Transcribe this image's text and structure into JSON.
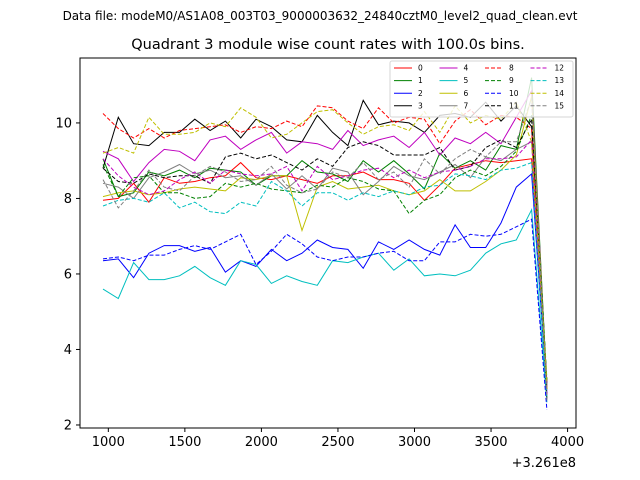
{
  "suptitle": "Data file: modeM0/AS1A08_003T03_9000003632_24840cztM0_level2_quad_clean.evt",
  "chart_data": {
    "type": "line",
    "title": "Quadrant 3 module wise count rates with 100.0s bins.",
    "xlabel": "",
    "ylabel": "",
    "x_offset_label": "+3.261e8",
    "xlim": [
      815,
      4055
    ],
    "ylim": [
      1.92,
      11.72
    ],
    "xticks": [
      1000,
      1500,
      2000,
      2500,
      3000,
      3500,
      4000
    ],
    "yticks": [
      2,
      4,
      6,
      8,
      10
    ],
    "grid": false,
    "legend_position": "top-right",
    "x": [
      965,
      1065,
      1165,
      1265,
      1365,
      1465,
      1565,
      1665,
      1765,
      1865,
      1965,
      2065,
      2165,
      2265,
      2365,
      2465,
      2565,
      2665,
      2765,
      2865,
      2965,
      3065,
      3165,
      3265,
      3365,
      3465,
      3565,
      3665,
      3765,
      3865
    ],
    "series": [
      {
        "name": "0",
        "color": "#ff0000",
        "dash": "solid",
        "values": [
          7.95,
          8.0,
          8.4,
          7.9,
          8.55,
          8.4,
          8.45,
          8.55,
          8.6,
          8.95,
          8.55,
          8.5,
          8.6,
          8.5,
          8.4,
          8.6,
          8.6,
          8.7,
          8.5,
          8.5,
          8.4,
          7.95,
          8.35,
          8.8,
          8.9,
          9.0,
          8.95,
          9.0,
          9.05,
          3.15
        ]
      },
      {
        "name": "1",
        "color": "#008000",
        "dash": "solid",
        "values": [
          9.05,
          8.05,
          8.15,
          8.7,
          8.6,
          8.75,
          8.55,
          8.8,
          8.75,
          8.7,
          8.35,
          8.6,
          8.6,
          9.0,
          8.7,
          8.65,
          8.45,
          9.0,
          8.7,
          9.0,
          8.65,
          8.25,
          9.2,
          8.8,
          9.0,
          8.75,
          9.4,
          9.3,
          11.2,
          2.95
        ]
      },
      {
        "name": "2",
        "color": "#0000ff",
        "dash": "solid",
        "values": [
          6.35,
          6.4,
          5.9,
          6.55,
          6.75,
          6.75,
          6.6,
          6.7,
          6.05,
          6.35,
          6.2,
          6.65,
          6.35,
          6.55,
          6.9,
          6.7,
          6.65,
          6.15,
          6.85,
          6.65,
          6.9,
          6.65,
          6.5,
          7.3,
          6.7,
          6.7,
          7.35,
          8.3,
          8.65,
          2.85
        ]
      },
      {
        "name": "3",
        "color": "#000000",
        "dash": "solid",
        "values": [
          8.8,
          10.15,
          9.45,
          9.4,
          9.75,
          9.75,
          10.1,
          9.8,
          10.05,
          9.6,
          10.1,
          9.9,
          9.55,
          9.5,
          10.2,
          9.75,
          9.4,
          10.6,
          9.95,
          10.05,
          10.0,
          9.75,
          10.2,
          10.25,
          10.15,
          10.55,
          10.05,
          10.45,
          9.9,
          3.1
        ]
      },
      {
        "name": "4",
        "color": "#bf00bf",
        "dash": "solid",
        "values": [
          9.25,
          9.05,
          8.45,
          8.95,
          9.3,
          9.25,
          9.0,
          9.55,
          9.65,
          9.3,
          9.55,
          9.75,
          9.2,
          9.5,
          9.45,
          9.3,
          9.8,
          9.4,
          9.55,
          9.65,
          9.35,
          9.75,
          9.15,
          9.6,
          9.45,
          9.75,
          9.45,
          10.15,
          10.85,
          3.0
        ]
      },
      {
        "name": "5",
        "color": "#00bfbf",
        "dash": "solid",
        "values": [
          5.6,
          5.35,
          6.3,
          5.85,
          5.85,
          5.95,
          6.2,
          5.9,
          5.7,
          6.35,
          6.25,
          5.75,
          5.95,
          5.8,
          5.7,
          6.35,
          6.3,
          6.45,
          6.55,
          6.1,
          6.4,
          5.95,
          6.0,
          5.95,
          6.1,
          6.55,
          6.8,
          6.9,
          7.7,
          2.6
        ]
      },
      {
        "name": "6",
        "color": "#bfbf00",
        "dash": "solid",
        "values": [
          8.05,
          8.15,
          8.2,
          8.1,
          8.15,
          8.25,
          8.3,
          8.25,
          8.2,
          8.55,
          8.5,
          8.6,
          8.6,
          7.15,
          8.3,
          8.45,
          8.25,
          8.3,
          8.35,
          8.2,
          8.1,
          8.2,
          8.5,
          8.2,
          8.2,
          8.45,
          8.75,
          9.15,
          10.7,
          2.95
        ]
      },
      {
        "name": "7",
        "color": "#808080",
        "dash": "solid",
        "values": [
          8.4,
          8.3,
          8.0,
          8.55,
          8.7,
          8.9,
          8.65,
          8.75,
          8.55,
          8.6,
          8.35,
          8.65,
          8.25,
          8.6,
          8.25,
          8.8,
          8.7,
          8.1,
          8.45,
          8.85,
          8.6,
          8.5,
          8.7,
          8.9,
          8.55,
          9.1,
          9.0,
          9.3,
          9.5,
          3.05
        ]
      },
      {
        "name": "8",
        "color": "#ff0000",
        "dash": "dashed",
        "values": [
          10.25,
          9.85,
          9.6,
          9.85,
          9.6,
          9.8,
          9.85,
          9.9,
          9.95,
          9.75,
          9.9,
          9.85,
          10.05,
          9.9,
          10.45,
          10.4,
          10.05,
          9.85,
          10.4,
          10.0,
          10.15,
          10.1,
          9.45,
          10.05,
          10.35,
          9.95,
          10.2,
          10.15,
          9.85,
          2.8
        ]
      },
      {
        "name": "9",
        "color": "#008000",
        "dash": "dashed",
        "values": [
          8.9,
          8.05,
          8.55,
          8.6,
          8.15,
          8.15,
          8.0,
          8.05,
          8.4,
          8.3,
          8.4,
          8.25,
          8.2,
          8.15,
          8.35,
          8.3,
          8.55,
          8.45,
          8.25,
          8.2,
          7.6,
          7.95,
          8.1,
          8.55,
          8.75,
          8.6,
          8.85,
          9.25,
          10.2,
          3.2
        ]
      },
      {
        "name": "10",
        "color": "#0000ff",
        "dash": "dashed",
        "values": [
          6.4,
          6.45,
          6.35,
          6.5,
          6.5,
          6.65,
          6.75,
          6.65,
          6.85,
          7.05,
          6.25,
          6.6,
          7.05,
          6.8,
          6.45,
          6.35,
          6.45,
          6.45,
          6.55,
          6.6,
          6.35,
          6.35,
          6.85,
          6.85,
          7.05,
          7.0,
          7.05,
          7.25,
          7.45,
          2.4
        ]
      },
      {
        "name": "11",
        "color": "#000000",
        "dash": "dashed",
        "values": [
          8.8,
          8.45,
          8.4,
          8.65,
          8.55,
          8.6,
          8.6,
          8.4,
          9.1,
          9.2,
          9.05,
          9.15,
          8.95,
          8.75,
          9.05,
          8.85,
          9.35,
          9.5,
          9.4,
          9.15,
          9.15,
          9.15,
          9.35,
          8.75,
          8.85,
          9.35,
          9.55,
          9.35,
          10.1,
          2.7
        ]
      },
      {
        "name": "12",
        "color": "#bf00bf",
        "dash": "dashed",
        "values": [
          9.05,
          8.6,
          8.3,
          8.1,
          8.2,
          8.5,
          8.7,
          8.4,
          8.75,
          8.65,
          8.6,
          8.65,
          8.85,
          8.2,
          8.85,
          8.5,
          8.6,
          8.75,
          8.8,
          8.55,
          8.75,
          8.55,
          8.7,
          8.75,
          8.85,
          9.05,
          9.05,
          9.1,
          9.55,
          2.8
        ]
      },
      {
        "name": "13",
        "color": "#00bfbf",
        "dash": "dashed",
        "values": [
          7.8,
          7.95,
          8.0,
          7.9,
          8.15,
          7.75,
          7.9,
          7.65,
          7.6,
          7.9,
          7.8,
          8.45,
          8.2,
          7.8,
          8.15,
          8.15,
          7.95,
          8.15,
          8.05,
          8.2,
          8.1,
          8.3,
          8.35,
          8.65,
          8.6,
          8.5,
          8.75,
          8.8,
          8.95,
          2.7
        ]
      },
      {
        "name": "14",
        "color": "#bfbf00",
        "dash": "dashed",
        "values": [
          9.2,
          9.35,
          9.2,
          10.15,
          9.7,
          9.7,
          9.75,
          10.0,
          9.9,
          10.4,
          10.15,
          9.6,
          9.7,
          10.0,
          10.3,
          10.35,
          10.0,
          9.7,
          9.9,
          9.95,
          9.8,
          10.3,
          9.75,
          10.45,
          10.0,
          10.2,
          10.1,
          10.55,
          9.5,
          3.1
        ]
      },
      {
        "name": "15",
        "color": "#808080",
        "dash": "dashed",
        "values": [
          8.5,
          7.75,
          8.2,
          8.75,
          8.3,
          8.2,
          8.6,
          8.85,
          8.7,
          8.45,
          8.5,
          8.85,
          8.35,
          8.15,
          8.25,
          8.7,
          8.55,
          8.95,
          8.5,
          8.7,
          8.3,
          9.05,
          8.65,
          9.05,
          9.3,
          9.1,
          9.5,
          9.5,
          10.65,
          2.65
        ]
      }
    ]
  }
}
